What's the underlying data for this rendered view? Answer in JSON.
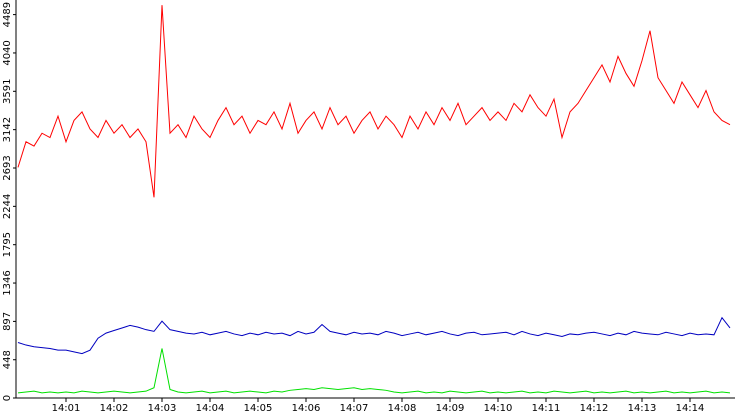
{
  "chart_data": {
    "type": "line",
    "categories": [
      null,
      null,
      null,
      null,
      null,
      null,
      "14:01",
      null,
      null,
      null,
      null,
      null,
      "14:02",
      null,
      null,
      null,
      null,
      null,
      "14:03",
      null,
      null,
      null,
      null,
      null,
      "14:04",
      null,
      null,
      null,
      null,
      null,
      "14:05",
      null,
      null,
      null,
      null,
      null,
      "14:06",
      null,
      null,
      null,
      null,
      null,
      "14:07",
      null,
      null,
      null,
      null,
      null,
      "14:08",
      null,
      null,
      null,
      null,
      null,
      "14:09",
      null,
      null,
      null,
      null,
      null,
      "14:10",
      null,
      null,
      null,
      null,
      null,
      "14:11",
      null,
      null,
      null,
      null,
      null,
      "14:12",
      null,
      null,
      null,
      null,
      null,
      "14:13",
      null,
      null,
      null,
      null,
      null,
      "14:14",
      null,
      null,
      null,
      null,
      null
    ],
    "series": [
      {
        "color": "#ff0000",
        "values": [
          2700,
          3000,
          2950,
          3100,
          3050,
          3300,
          3000,
          3250,
          3350,
          3150,
          3050,
          3250,
          3100,
          3200,
          3050,
          3150,
          3000,
          2350,
          4600,
          3100,
          3200,
          3050,
          3300,
          3150,
          3050,
          3250,
          3400,
          3200,
          3300,
          3100,
          3250,
          3200,
          3350,
          3150,
          3450,
          3100,
          3250,
          3350,
          3150,
          3400,
          3200,
          3300,
          3100,
          3250,
          3350,
          3150,
          3300,
          3200,
          3050,
          3300,
          3150,
          3350,
          3200,
          3400,
          3250,
          3450,
          3200,
          3300,
          3400,
          3250,
          3350,
          3250,
          3450,
          3350,
          3550,
          3400,
          3300,
          3500,
          3050,
          3350,
          3450,
          3600,
          3750,
          3900,
          3700,
          4000,
          3800,
          3650,
          3950,
          4300,
          3750,
          3600,
          3450,
          3700,
          3550,
          3400,
          3600,
          3350,
          3250,
          3200
        ]
      },
      {
        "color": "#0000c0",
        "values": [
          650,
          620,
          600,
          590,
          580,
          560,
          560,
          540,
          520,
          560,
          700,
          760,
          790,
          820,
          850,
          830,
          800,
          780,
          900,
          800,
          780,
          760,
          750,
          770,
          740,
          760,
          780,
          750,
          730,
          760,
          740,
          770,
          750,
          760,
          730,
          780,
          750,
          770,
          860,
          780,
          760,
          740,
          770,
          750,
          760,
          740,
          780,
          760,
          730,
          750,
          770,
          740,
          760,
          780,
          750,
          730,
          760,
          770,
          740,
          750,
          760,
          770,
          740,
          780,
          750,
          730,
          760,
          740,
          720,
          750,
          740,
          760,
          770,
          750,
          730,
          760,
          740,
          780,
          760,
          750,
          740,
          770,
          750,
          730,
          760,
          740,
          750,
          740,
          940,
          820
        ]
      },
      {
        "color": "#00e000",
        "values": [
          60,
          70,
          80,
          60,
          70,
          60,
          70,
          60,
          80,
          70,
          60,
          70,
          80,
          70,
          60,
          70,
          80,
          120,
          580,
          100,
          70,
          60,
          70,
          80,
          60,
          70,
          80,
          60,
          70,
          80,
          70,
          60,
          80,
          70,
          90,
          100,
          110,
          100,
          120,
          110,
          100,
          110,
          120,
          100,
          110,
          100,
          90,
          70,
          60,
          70,
          80,
          60,
          70,
          60,
          80,
          70,
          60,
          70,
          80,
          60,
          70,
          60,
          70,
          80,
          60,
          70,
          60,
          80,
          70,
          60,
          70,
          80,
          60,
          70,
          60,
          70,
          80,
          60,
          70,
          60,
          70,
          80,
          60,
          70,
          60,
          70,
          80,
          60,
          70,
          60
        ]
      }
    ],
    "ylim": [
      0,
      4660
    ],
    "yticks": [
      0,
      448,
      897,
      1346,
      1795,
      2244,
      2693,
      3142,
      3591,
      4040,
      4489
    ]
  }
}
